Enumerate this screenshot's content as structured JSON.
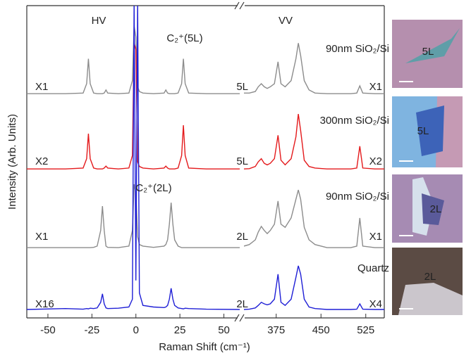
{
  "chart_data": [
    {
      "type": "line",
      "title": "HV",
      "ylabel": "Intensity (Arb. Units)",
      "xlabel": "Raman Shift (cm⁻¹)",
      "xlim": [
        -62,
        59
      ],
      "xticks": [
        -50,
        -25,
        0,
        25,
        50
      ],
      "ylim": [
        0,
        100
      ],
      "x": [
        -62,
        -40,
        -30,
        -28,
        -27,
        -26,
        -24,
        -22,
        -20,
        -19,
        -18,
        -17,
        -16,
        -10,
        -4,
        -2,
        -1,
        0,
        1,
        2,
        4,
        10,
        16,
        17,
        18,
        19,
        20,
        21,
        22,
        24,
        26,
        27,
        28,
        30,
        40,
        59
      ],
      "annotations": [
        "C₂⁺(5L)",
        "C₂⁺(2L)"
      ],
      "series": [
        {
          "label": "X1",
          "color": "#8c8c8c",
          "values": [
            71.8,
            71.8,
            72,
            75,
            83,
            75,
            72,
            71.8,
            71.8,
            71.8,
            72,
            73,
            72,
            71.8,
            72,
            76,
            93.5,
            90,
            74,
            72.5,
            72,
            71.8,
            72,
            73,
            72,
            71.8,
            71.8,
            71.8,
            71.8,
            72,
            75,
            83,
            75,
            72,
            71.8,
            71.8
          ]
        },
        {
          "label": "X2",
          "color": "#e41a1c",
          "values": [
            47.7,
            47.7,
            48,
            51,
            59,
            51,
            48,
            47.7,
            47.7,
            47.7,
            48,
            48.6,
            48,
            47.7,
            48,
            52,
            88,
            86,
            50,
            48.5,
            48,
            47.7,
            48,
            48.6,
            48,
            47.7,
            47.7,
            47.7,
            47.7,
            48,
            52,
            61.7,
            52,
            48,
            47.7,
            47.7
          ]
        },
        {
          "label": "X1",
          "color": "#8c8c8c",
          "values": [
            22.5,
            22.5,
            22.5,
            22.5,
            22.5,
            22.5,
            22.6,
            23,
            28,
            35.8,
            28,
            23,
            22.6,
            22.5,
            23,
            28,
            42.8,
            40,
            26,
            23.5,
            23,
            22.6,
            23,
            23.5,
            25,
            30,
            36.9,
            30,
            25,
            23,
            22.5,
            22.5,
            22.5,
            22.5,
            22.5,
            22.5
          ]
        },
        {
          "label": "X16",
          "color": "#1f1fd6",
          "values": [
            2.7,
            3,
            2.8,
            3,
            2.9,
            3.1,
            3,
            3.2,
            5,
            7.7,
            4.5,
            3.2,
            3,
            3.1,
            3.5,
            6,
            101,
            12,
            101,
            8,
            4,
            3.5,
            3.3,
            3.5,
            4,
            6,
            9.5,
            6,
            4,
            3.2,
            3,
            2.9,
            3.1,
            3,
            2.8,
            2.7
          ]
        }
      ]
    },
    {
      "type": "line",
      "title": "VV",
      "xlim": [
        321,
        556
      ],
      "xticks": [
        375,
        450,
        525
      ],
      "ylim": [
        0,
        100
      ],
      "x": [
        321,
        330,
        340,
        345,
        350,
        355,
        360,
        365,
        372,
        378,
        383,
        390,
        400,
        408,
        412,
        416,
        422,
        430,
        440,
        460,
        500,
        510,
        515,
        520,
        540,
        556
      ],
      "series": [
        {
          "label": "5L",
          "scale": "X1",
          "substrate": "90nm SiO₂/Si",
          "color": "#8c8c8c",
          "values": [
            72,
            72,
            72.5,
            74,
            75,
            74,
            73.5,
            74,
            75,
            82,
            75,
            74,
            76,
            83,
            88,
            84,
            76,
            73,
            72,
            71.8,
            71.8,
            72,
            74.3,
            72,
            71.8,
            71.8
          ]
        },
        {
          "label": "5L",
          "scale": "X2",
          "substrate": "300nm SiO₂/Si",
          "color": "#e41a1c",
          "values": [
            47.7,
            47.8,
            48.5,
            50,
            51,
            49.5,
            49,
            49.5,
            51,
            58.5,
            50.5,
            49,
            51,
            58,
            65.3,
            60,
            50.5,
            48.5,
            48,
            47.7,
            47.7,
            48,
            55,
            48,
            47.7,
            47.7
          ]
        },
        {
          "label": "2L",
          "scale": "X1",
          "substrate": "90nm SiO₂/Si",
          "color": "#8c8c8c",
          "values": [
            23,
            23.5,
            25,
            27.5,
            29.3,
            28,
            27,
            28,
            30,
            37.4,
            30,
            29,
            32,
            38,
            41,
            38,
            29,
            25,
            23.5,
            22.5,
            22.5,
            23,
            32,
            23,
            22.5,
            22.5
          ]
        },
        {
          "label": "2L",
          "scale": "X4",
          "substrate": "Quartz",
          "color": "#1f1fd6",
          "values": [
            2.7,
            2.8,
            3.2,
            4,
            5,
            4.5,
            4.2,
            4.5,
            6,
            14,
            5,
            4,
            6,
            13,
            16.7,
            14,
            6,
            3.5,
            3,
            2.7,
            2.7,
            2.8,
            4.5,
            2.8,
            2.7,
            2.7
          ]
        }
      ]
    }
  ],
  "photos": [
    {
      "label": "5L"
    },
    {
      "label": "5L"
    },
    {
      "label": "2L"
    },
    {
      "label": "2L"
    }
  ]
}
